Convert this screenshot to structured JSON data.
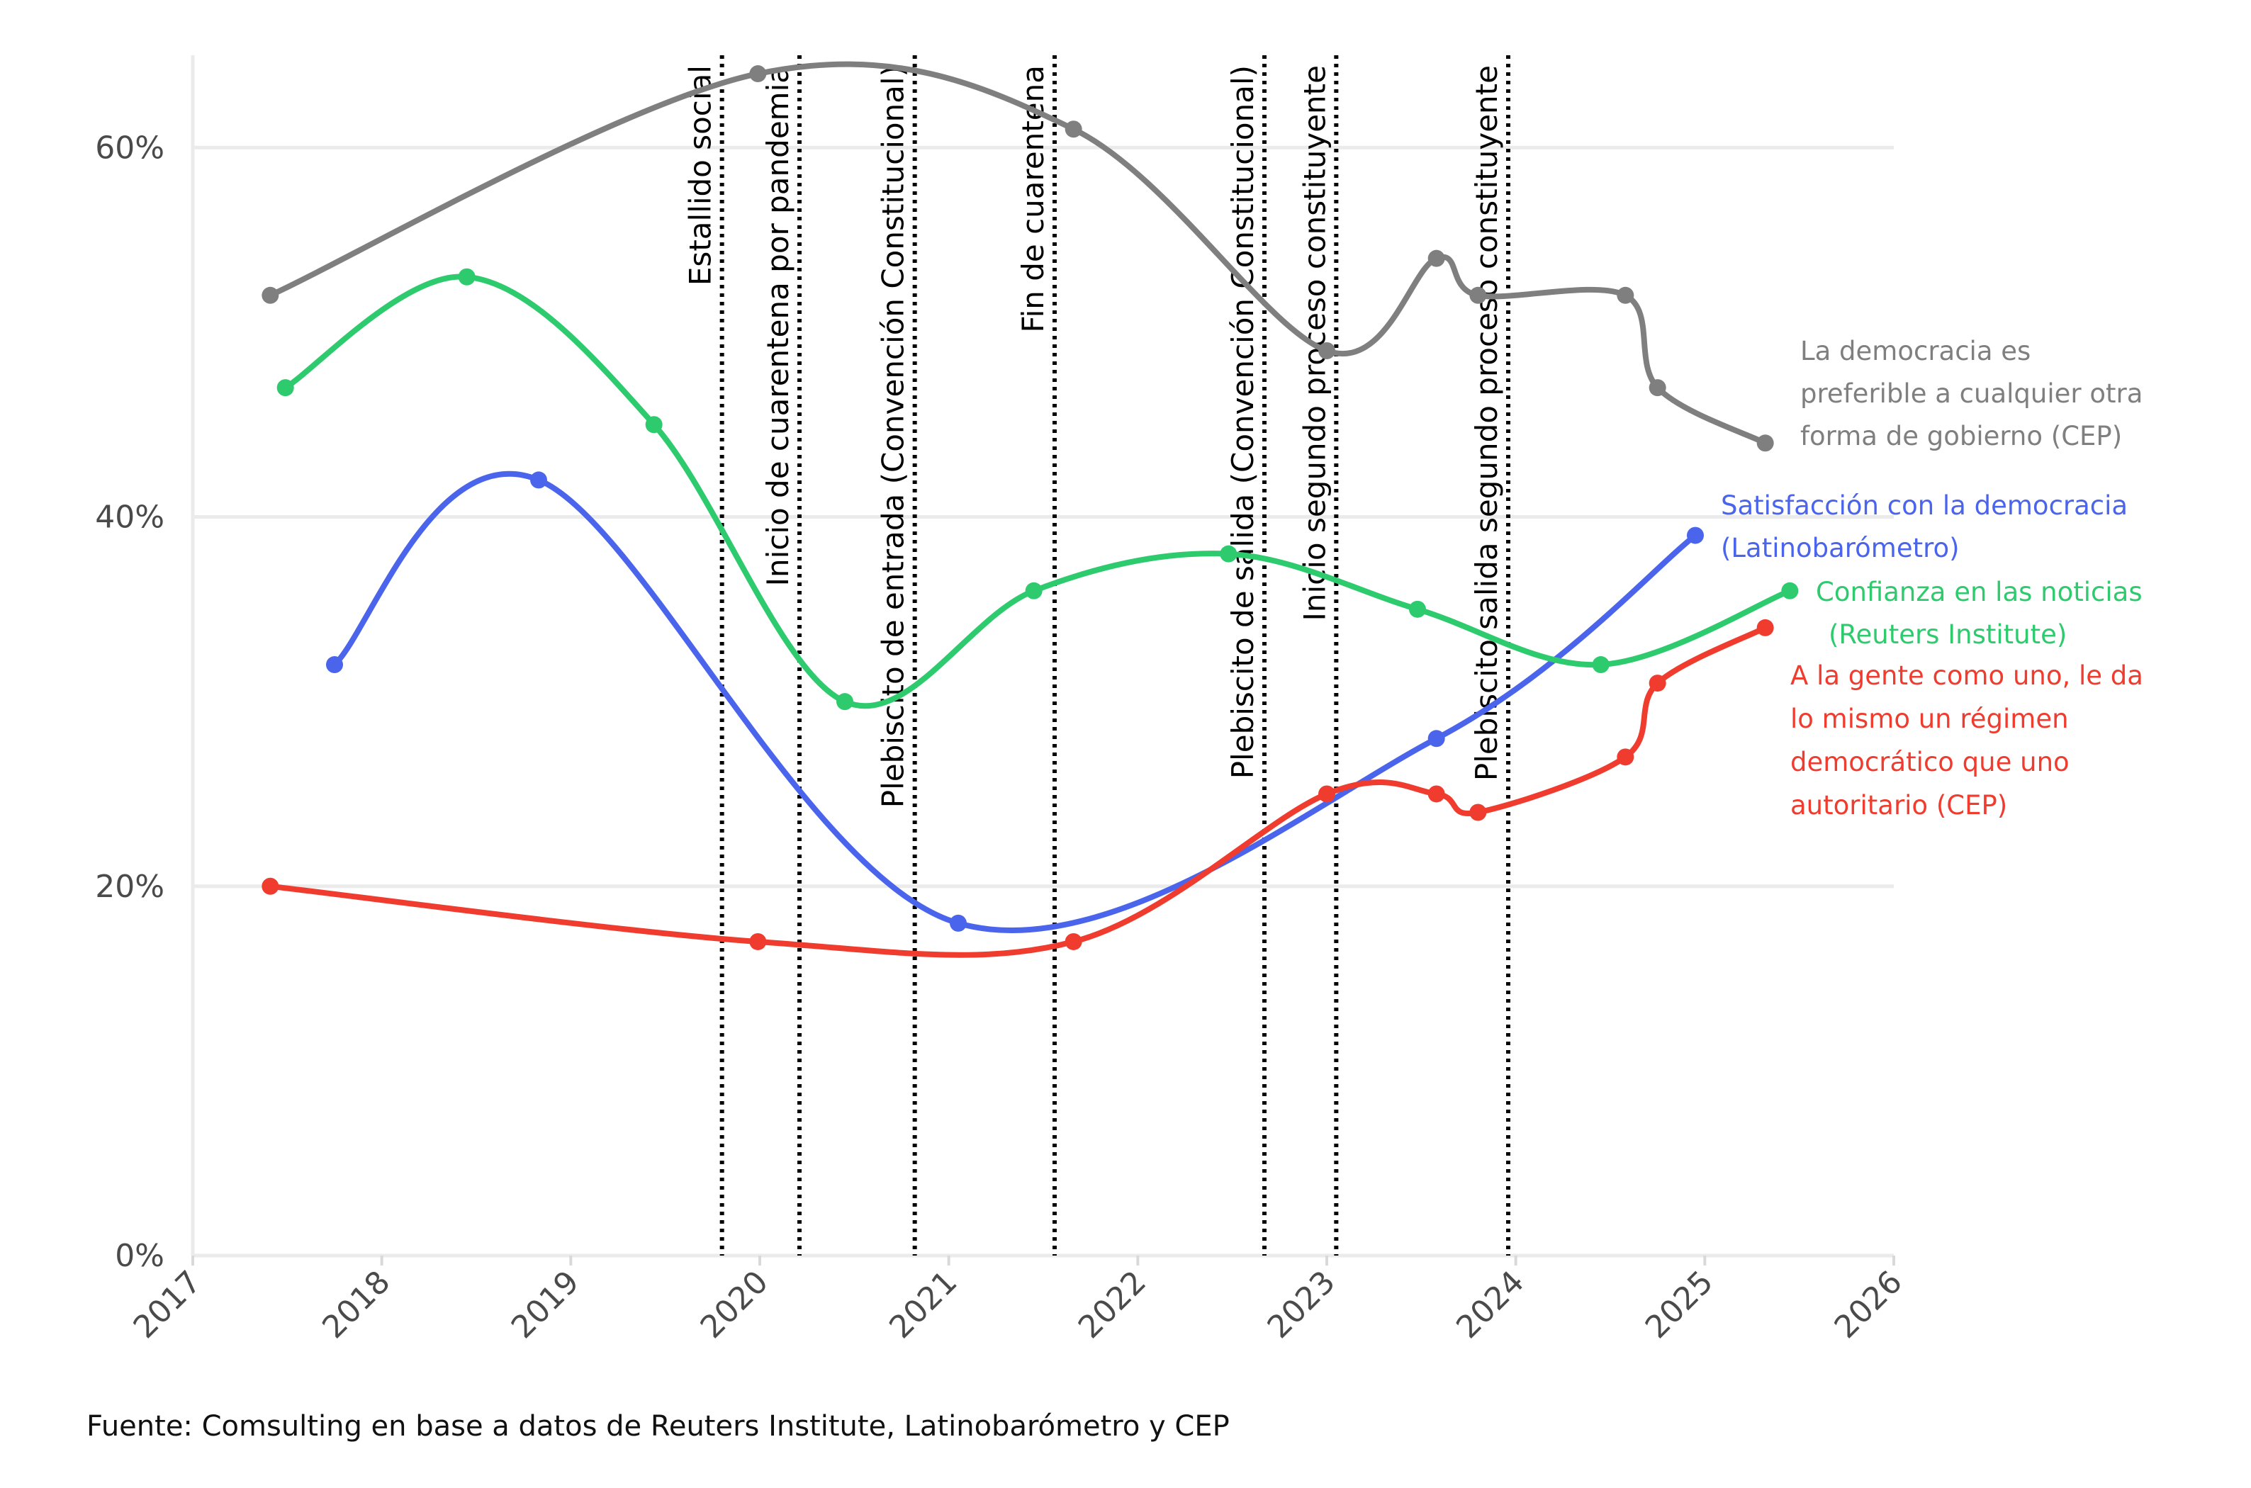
{
  "chart_data": {
    "type": "line",
    "title": "",
    "xlabel": "",
    "ylabel": "",
    "xlim": [
      2017,
      2026
    ],
    "ylim": [
      0,
      65
    ],
    "x_ticks": [
      "2017",
      "2018",
      "2019",
      "2020",
      "2021",
      "2022",
      "2023",
      "2024",
      "2025",
      "2026"
    ],
    "y_ticks": [
      {
        "value": 0,
        "label": "0%"
      },
      {
        "value": 20,
        "label": "20%"
      },
      {
        "value": 40,
        "label": "40%"
      },
      {
        "value": 60,
        "label": "60%"
      }
    ],
    "grid": true,
    "events": [
      {
        "x": 2019.8,
        "label": "Estallido social"
      },
      {
        "x": 2020.21,
        "label": "Inicio de cuarentena por pandemia"
      },
      {
        "x": 2020.82,
        "label": "Plebiscito de entrada (Convención Constitucional)"
      },
      {
        "x": 2021.56,
        "label": "Fin de cuarentena"
      },
      {
        "x": 2022.67,
        "label": "Plebiscito de salida (Convención Constitucional)"
      },
      {
        "x": 2023.05,
        "label": "Inicio segundo proceso constituyente"
      },
      {
        "x": 2023.96,
        "label": "Plebiscito salida segundo proceso constituyente"
      }
    ],
    "series": [
      {
        "name": "La democracia es preferible a cualquier otra forma de gobierno (CEP)",
        "label_lines": [
          "La democracia es",
          "preferible a cualquier otra",
          "forma de gobierno (CEP)"
        ],
        "color": "#7f7f7f",
        "points": [
          [
            2017.41,
            52
          ],
          [
            2019.99,
            64
          ],
          [
            2021.66,
            61
          ],
          [
            2023.0,
            49
          ],
          [
            2023.58,
            54
          ],
          [
            2023.8,
            52
          ],
          [
            2024.58,
            52
          ],
          [
            2024.75,
            47
          ],
          [
            2025.32,
            44
          ]
        ]
      },
      {
        "name": "Satisfacción con la democracia (Latinobarómetro)",
        "label_lines": [
          "Satisfacción con la democracia",
          "(Latinobarómetro)"
        ],
        "color": "#4a65ec",
        "points": [
          [
            2017.75,
            32
          ],
          [
            2018.83,
            42
          ],
          [
            2021.05,
            18
          ],
          [
            2023.58,
            28
          ],
          [
            2024.95,
            39
          ]
        ]
      },
      {
        "name": "Confianza en las noticias (Reuters Institute)",
        "label_lines": [
          "Confianza en las noticias",
          "(Reuters Institute)"
        ],
        "color": "#2dcb6e",
        "points": [
          [
            2017.49,
            47
          ],
          [
            2018.45,
            53
          ],
          [
            2019.44,
            45
          ],
          [
            2020.45,
            30
          ],
          [
            2021.45,
            36
          ],
          [
            2022.48,
            38
          ],
          [
            2023.48,
            35
          ],
          [
            2024.45,
            32
          ],
          [
            2025.45,
            36
          ]
        ]
      },
      {
        "name": "A la gente como uno, le da lo mismo un régimen democrático que uno autoritario (CEP)",
        "label_lines": [
          "A la gente como uno, le da",
          "lo mismo un régimen",
          "democrático que uno",
          "autoritario (CEP)"
        ],
        "color": "#f03c2e",
        "points": [
          [
            2017.41,
            20
          ],
          [
            2019.99,
            17
          ],
          [
            2021.66,
            17
          ],
          [
            2023.0,
            25
          ],
          [
            2023.58,
            25
          ],
          [
            2023.8,
            24
          ],
          [
            2024.58,
            27
          ],
          [
            2024.75,
            31
          ],
          [
            2025.32,
            34
          ]
        ]
      }
    ],
    "source": "Fuente: Comsulting en base a datos de Reuters Institute, Latinobarómetro y CEP"
  }
}
